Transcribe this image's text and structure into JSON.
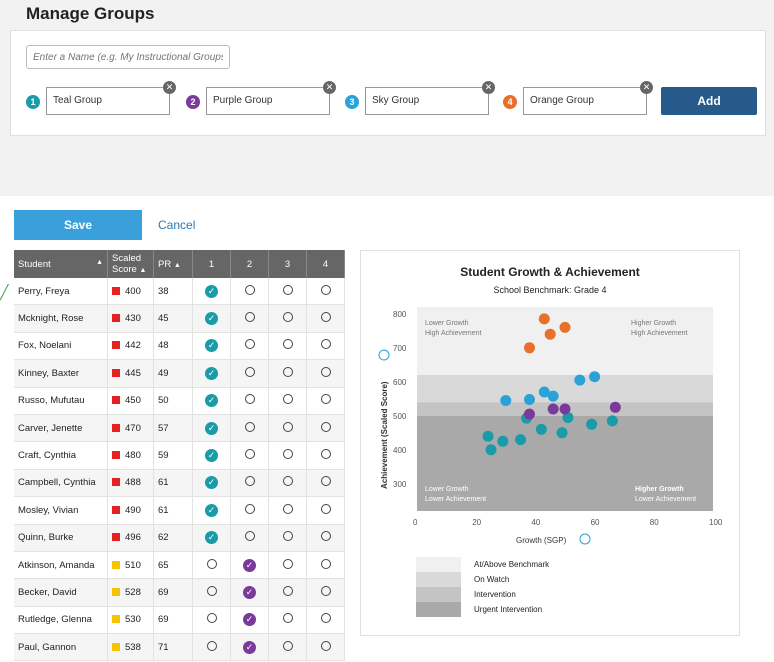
{
  "header": {
    "title": "Manage Groups"
  },
  "group_form": {
    "name_placeholder": "Enter a Name (e.g. My Instructional Groups)",
    "groups": [
      {
        "number": "1",
        "name": "Teal Group",
        "color": "#1a9ba8"
      },
      {
        "number": "2",
        "name": "Purple Group",
        "color": "#7a3a9a"
      },
      {
        "number": "3",
        "name": "Sky Group",
        "color": "#2aa1d8"
      },
      {
        "number": "4",
        "name": "Orange Group",
        "color": "#e8702a"
      }
    ],
    "add_label": "Add"
  },
  "actions": {
    "save_label": "Save",
    "cancel_label": "Cancel"
  },
  "table": {
    "headers": {
      "student": "Student",
      "scaled_score_line1": "Scaled",
      "scaled_score_line2": "Score",
      "pr": "PR",
      "g1": "1",
      "g2": "2",
      "g3": "3",
      "g4": "4"
    },
    "rows": [
      {
        "name": "Perry, Freya",
        "score": "400",
        "score_color": "#e52222",
        "pr": "38",
        "group": 1
      },
      {
        "name": "Mcknight, Rose",
        "score": "430",
        "score_color": "#e52222",
        "pr": "45",
        "group": 1
      },
      {
        "name": "Fox, Noelani",
        "score": "442",
        "score_color": "#e52222",
        "pr": "48",
        "group": 1
      },
      {
        "name": "Kinney, Baxter",
        "score": "445",
        "score_color": "#e52222",
        "pr": "49",
        "group": 1
      },
      {
        "name": "Russo, Mufutau",
        "score": "450",
        "score_color": "#e52222",
        "pr": "50",
        "group": 1
      },
      {
        "name": "Carver, Jenette",
        "score": "470",
        "score_color": "#e52222",
        "pr": "57",
        "group": 1
      },
      {
        "name": "Craft, Cynthia",
        "score": "480",
        "score_color": "#e52222",
        "pr": "59",
        "group": 1
      },
      {
        "name": "Campbell, Cynthia",
        "score": "488",
        "score_color": "#e52222",
        "pr": "61",
        "group": 1
      },
      {
        "name": "Mosley, Vivian",
        "score": "490",
        "score_color": "#e52222",
        "pr": "61",
        "group": 1
      },
      {
        "name": "Quinn, Burke",
        "score": "496",
        "score_color": "#e52222",
        "pr": "62",
        "group": 1
      },
      {
        "name": "Atkinson, Amanda",
        "score": "510",
        "score_color": "#f5c400",
        "pr": "65",
        "group": 2
      },
      {
        "name": "Becker, David",
        "score": "528",
        "score_color": "#f5c400",
        "pr": "69",
        "group": 2
      },
      {
        "name": "Rutledge, Glenna",
        "score": "530",
        "score_color": "#f5c400",
        "pr": "69",
        "group": 2
      },
      {
        "name": "Paul, Gannon",
        "score": "538",
        "score_color": "#f5c400",
        "pr": "71",
        "group": 2
      }
    ]
  },
  "chart_data": {
    "type": "scatter",
    "title": "Student Growth & Achievement",
    "subtitle": "School Benchmark: Grade 4",
    "xlabel": "Growth (SGP)",
    "ylabel": "Achievement (Scaled Score)",
    "xlim": [
      0,
      100
    ],
    "ylim": [
      220,
      820
    ],
    "xticks": [
      "0",
      "20",
      "40",
      "60",
      "80",
      "100"
    ],
    "yticks": [
      "300",
      "400",
      "500",
      "600",
      "700",
      "800"
    ],
    "quadrant_labels": {
      "top_left": [
        "Lower Growth",
        "High Achievement"
      ],
      "top_right": [
        "Higher Growth",
        "High Achievement"
      ],
      "bottom_left": [
        "Lower Growth",
        "Lower Achievement"
      ],
      "bottom_right": [
        "Higher Growth",
        "Lower Achievement"
      ]
    },
    "bands": [
      {
        "name": "At/Above Benchmark",
        "from": 620,
        "to": 820,
        "color": "#f0f0f0"
      },
      {
        "name": "On Watch",
        "from": 540,
        "to": 620,
        "color": "#d9d9d9"
      },
      {
        "name": "Intervention",
        "from": 500,
        "to": 540,
        "color": "#c4c4c4"
      },
      {
        "name": "Urgent Intervention",
        "from": 220,
        "to": 500,
        "color": "#a9a9a9"
      }
    ],
    "series": [
      {
        "color": "#e8702a",
        "points": [
          [
            38,
            700
          ],
          [
            43,
            785
          ],
          [
            45,
            740
          ],
          [
            50,
            760
          ]
        ]
      },
      {
        "color": "#2aa1d8",
        "points": [
          [
            30,
            545
          ],
          [
            38,
            548
          ],
          [
            43,
            570
          ],
          [
            46,
            558
          ],
          [
            55,
            605
          ],
          [
            60,
            615
          ]
        ]
      },
      {
        "color": "#1a9ba8",
        "points": [
          [
            24,
            440
          ],
          [
            25,
            400
          ],
          [
            29,
            425
          ],
          [
            35,
            430
          ],
          [
            37,
            493
          ],
          [
            42,
            460
          ],
          [
            49,
            450
          ],
          [
            51,
            495
          ],
          [
            59,
            475
          ],
          [
            66,
            485
          ]
        ]
      },
      {
        "color": "#7a3a9a",
        "points": [
          [
            38,
            505
          ],
          [
            46,
            520
          ],
          [
            50,
            520
          ],
          [
            67,
            525
          ]
        ]
      }
    ]
  }
}
